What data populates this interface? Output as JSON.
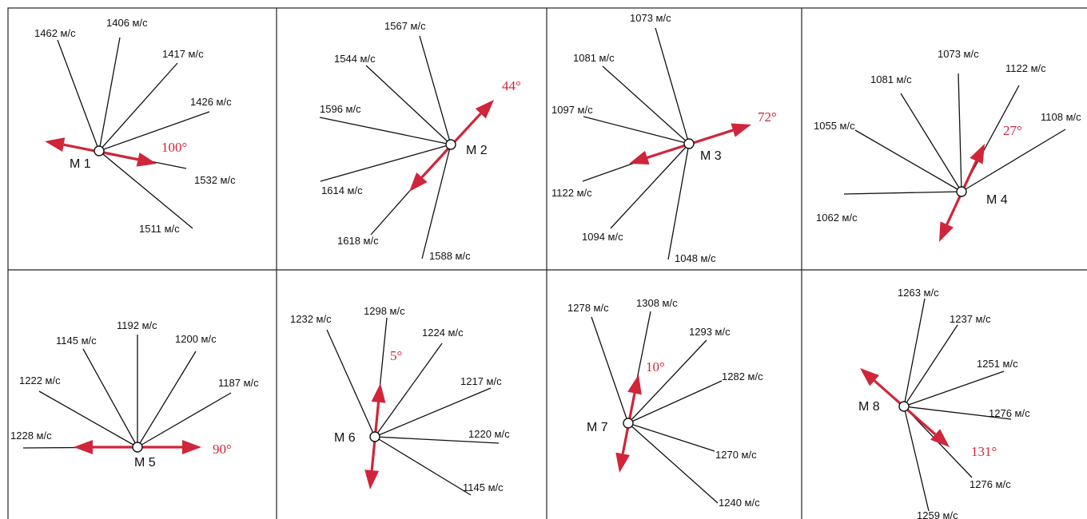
{
  "panels": [
    {
      "name": "M 1",
      "angle": "100°",
      "rays": [
        {
          "label": "1462 м/с"
        },
        {
          "label": "1406 м/с"
        },
        {
          "label": "1417 м/с"
        },
        {
          "label": "1426 м/с"
        },
        {
          "label": "1532 м/с"
        },
        {
          "label": "1511 м/с"
        }
      ]
    },
    {
      "name": "M 2",
      "angle": "44°",
      "rays": [
        {
          "label": "1567 м/с"
        },
        {
          "label": "1544 м/с"
        },
        {
          "label": "1596 м/с"
        },
        {
          "label": "1614 м/с"
        },
        {
          "label": "1618 м/с"
        },
        {
          "label": "1588 м/с"
        }
      ]
    },
    {
      "name": "M 3",
      "angle": "72°",
      "rays": [
        {
          "label": "1073 м/с"
        },
        {
          "label": "1081 м/с"
        },
        {
          "label": "1097 м/с"
        },
        {
          "label": "1122 м/с"
        },
        {
          "label": "1094 м/с"
        },
        {
          "label": "1048 м/с"
        }
      ]
    },
    {
      "name": "M 4",
      "angle": "27°",
      "rays": [
        {
          "label": "1073 м/с"
        },
        {
          "label": "1081 м/с"
        },
        {
          "label": "1122 м/с"
        },
        {
          "label": "1108 м/с"
        },
        {
          "label": "1055 м/с"
        },
        {
          "label": "1062 м/с"
        }
      ]
    },
    {
      "name": "M 5",
      "angle": "90°",
      "rays": [
        {
          "label": "1192 м/с"
        },
        {
          "label": "1145 м/с"
        },
        {
          "label": "1200 м/с"
        },
        {
          "label": "1222 м/с"
        },
        {
          "label": "1187 м/с"
        },
        {
          "label": "1228 м/с"
        }
      ]
    },
    {
      "name": "M 6",
      "angle": "5°",
      "rays": [
        {
          "label": "1232 м/с"
        },
        {
          "label": "1298 м/с"
        },
        {
          "label": "1224 м/с"
        },
        {
          "label": "1217 м/с"
        },
        {
          "label": "1220 м/с"
        },
        {
          "label": "1145 м/с"
        }
      ]
    },
    {
      "name": "M 7",
      "angle": "10°",
      "rays": [
        {
          "label": "1278 м/с"
        },
        {
          "label": "1308 м/с"
        },
        {
          "label": "1293 м/с"
        },
        {
          "label": "1282 м/с"
        },
        {
          "label": "1270 м/с"
        },
        {
          "label": "1240 м/с"
        }
      ]
    },
    {
      "name": "M 8",
      "angle": "131°",
      "rays": [
        {
          "label": "1263 м/с"
        },
        {
          "label": "1237 м/с"
        },
        {
          "label": "1251 м/с"
        },
        {
          "label": "1276 м/с"
        },
        {
          "label": "1276 м/с"
        },
        {
          "label": "1259 м/с"
        }
      ]
    }
  ]
}
